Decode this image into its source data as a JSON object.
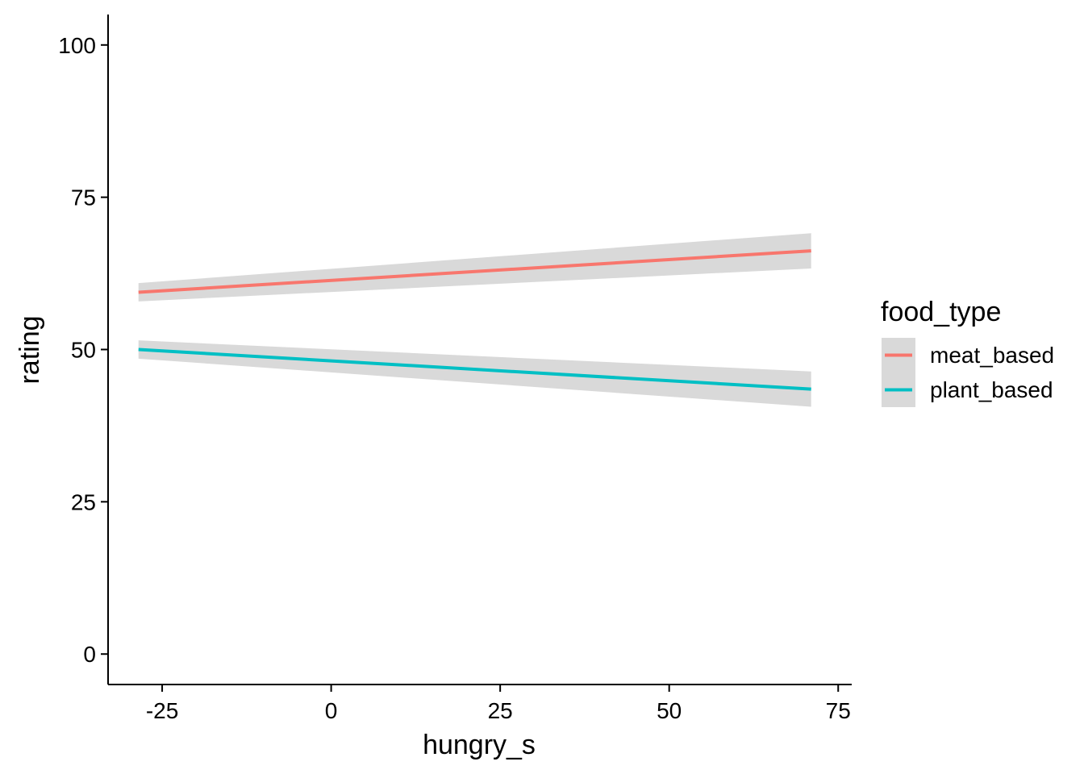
{
  "chart_data": {
    "type": "line",
    "title": "",
    "xlabel": "hungry_s",
    "ylabel": "rating",
    "xlim": [
      -33,
      77
    ],
    "ylim": [
      -5,
      105
    ],
    "x_ticks": [
      -25,
      0,
      25,
      50,
      75
    ],
    "y_ticks": [
      0,
      25,
      50,
      75,
      100
    ],
    "x_tick_labels": [
      "-25",
      "0",
      "25",
      "50",
      "75"
    ],
    "y_tick_labels": [
      "0",
      "25",
      "50",
      "75",
      "100"
    ],
    "grid": false,
    "legend_title": "food_type",
    "legend_position": "right",
    "band_color": "#d9d9d9",
    "series": [
      {
        "name": "meat_based",
        "color": "#f8766d",
        "x": [
          -28.5,
          71
        ],
        "y": [
          59.4,
          66.2
        ],
        "lower": [
          57.9,
          63.3
        ],
        "upper": [
          60.9,
          69.1
        ]
      },
      {
        "name": "plant_based",
        "color": "#00bfc4",
        "x": [
          -28.5,
          71
        ],
        "y": [
          50.0,
          43.5
        ],
        "lower": [
          48.5,
          40.6
        ],
        "upper": [
          51.5,
          46.4
        ]
      }
    ]
  }
}
